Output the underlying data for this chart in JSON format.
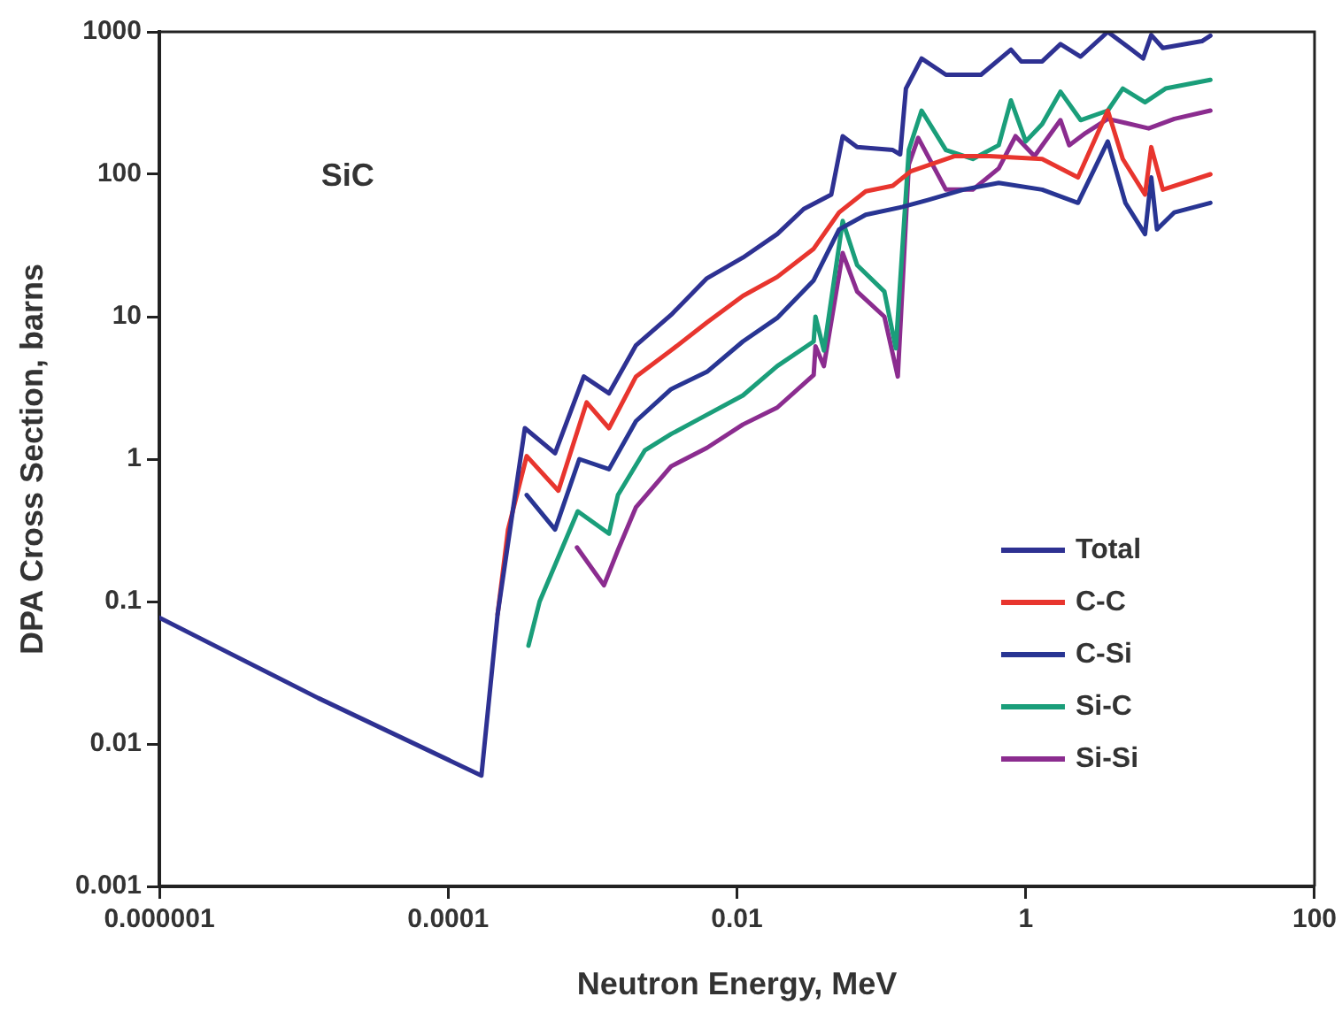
{
  "chart_data": {
    "type": "line",
    "xlabel": "Neutron Energy, MeV",
    "ylabel": "DPA Cross Section, barns",
    "log": "xy",
    "grid": false,
    "legend": "bottom right",
    "marker": "none",
    "line_style": "solid",
    "xlim": [
      1e-06,
      100
    ],
    "xticks": [
      {
        "value": 1e-06,
        "label": "0.000001"
      },
      0.0001,
      0.01,
      1,
      100
    ],
    "ylim": [
      0.001,
      1000
    ],
    "yticks": [
      0.001,
      0.01,
      0.1,
      1,
      10,
      100,
      1000
    ],
    "annotations": [
      "SiC"
    ],
    "series": [
      {
        "name": "Total",
        "color": "#2e3192",
        "x": [
          1e-06,
          1.26e-05,
          0.00017,
          0.00022,
          0.00034,
          0.00055,
          0.00087,
          0.0013,
          0.002,
          0.0035,
          0.0062,
          0.011,
          0.019,
          0.029,
          0.045,
          0.054,
          0.068,
          0.12,
          0.135,
          0.148,
          0.19,
          0.28,
          0.49,
          0.79,
          0.93,
          1.3,
          1.74,
          2.4,
          3.7,
          5.4,
          6.5,
          7.4,
          8.9,
          16.6,
          19
        ],
        "values": [
          0.077,
          0.021,
          0.006,
          0.081,
          1.65,
          1.1,
          3.8,
          2.9,
          6.3,
          10.3,
          18.6,
          26,
          38,
          57,
          72,
          185,
          155,
          148,
          138,
          400,
          650,
          500,
          500,
          750,
          620,
          620,
          820,
          670,
          1000,
          750,
          650,
          950,
          770,
          860,
          940
        ]
      },
      {
        "name": "C-C",
        "color": "#e8352e",
        "x": [
          0.00022,
          0.00026,
          0.00035,
          0.00058,
          0.00091,
          0.0013,
          0.002,
          0.0035,
          0.0062,
          0.011,
          0.019,
          0.034,
          0.051,
          0.078,
          0.12,
          0.16,
          0.32,
          0.56,
          1.3,
          2.3,
          3.7,
          4.7,
          6.7,
          7.4,
          8.9,
          19
        ],
        "values": [
          0.081,
          0.32,
          1.05,
          0.6,
          2.5,
          1.65,
          3.8,
          5.8,
          9.1,
          14,
          19,
          30,
          54,
          76,
          83,
          105,
          134,
          134,
          128,
          95,
          280,
          128,
          72,
          155,
          78,
          100
        ]
      },
      {
        "name": "C-Si",
        "color": "#283593",
        "x": [
          0.00035,
          0.00055,
          0.00081,
          0.0013,
          0.002,
          0.0035,
          0.0062,
          0.011,
          0.019,
          0.034,
          0.051,
          0.078,
          0.14,
          0.21,
          0.37,
          0.65,
          1.3,
          2.3,
          3.7,
          4.9,
          6.7,
          7.4,
          8.1,
          10.7,
          19
        ],
        "values": [
          0.56,
          0.32,
          1.0,
          0.85,
          1.85,
          3.1,
          4.1,
          6.7,
          9.8,
          18,
          41,
          52,
          59,
          66,
          78,
          87,
          78,
          63,
          170,
          63,
          38,
          95,
          41,
          54,
          63
        ]
      },
      {
        "name": "Si-C",
        "color": "#1a9e7a",
        "x": [
          0.00036,
          0.00043,
          0.00079,
          0.0013,
          0.0015,
          0.0023,
          0.0035,
          0.0054,
          0.011,
          0.019,
          0.034,
          0.035,
          0.04,
          0.054,
          0.068,
          0.105,
          0.126,
          0.155,
          0.19,
          0.28,
          0.43,
          0.65,
          0.79,
          1,
          1.3,
          1.74,
          2.4,
          3.7,
          4.7,
          6.7,
          9.3,
          19
        ],
        "values": [
          0.049,
          0.1,
          0.43,
          0.3,
          0.56,
          1.15,
          1.5,
          1.9,
          2.8,
          4.5,
          6.7,
          10,
          5.8,
          47,
          23,
          15,
          6,
          148,
          280,
          148,
          128,
          160,
          330,
          170,
          225,
          380,
          240,
          280,
          400,
          320,
          400,
          460
        ]
      },
      {
        "name": "Si-Si",
        "color": "#8b2c8f",
        "x": [
          0.00078,
          0.0012,
          0.0015,
          0.002,
          0.0035,
          0.0062,
          0.011,
          0.019,
          0.034,
          0.035,
          0.04,
          0.054,
          0.068,
          0.105,
          0.13,
          0.155,
          0.18,
          0.28,
          0.43,
          0.65,
          0.85,
          1.15,
          1.74,
          2,
          2.6,
          3.7,
          7.1,
          10.7,
          19
        ],
        "values": [
          0.24,
          0.13,
          0.23,
          0.46,
          0.89,
          1.2,
          1.75,
          2.3,
          3.9,
          6.2,
          4.5,
          28,
          15,
          10,
          3.8,
          117,
          180,
          78,
          78,
          110,
          185,
          134,
          240,
          160,
          195,
          245,
          210,
          245,
          280
        ]
      }
    ]
  }
}
